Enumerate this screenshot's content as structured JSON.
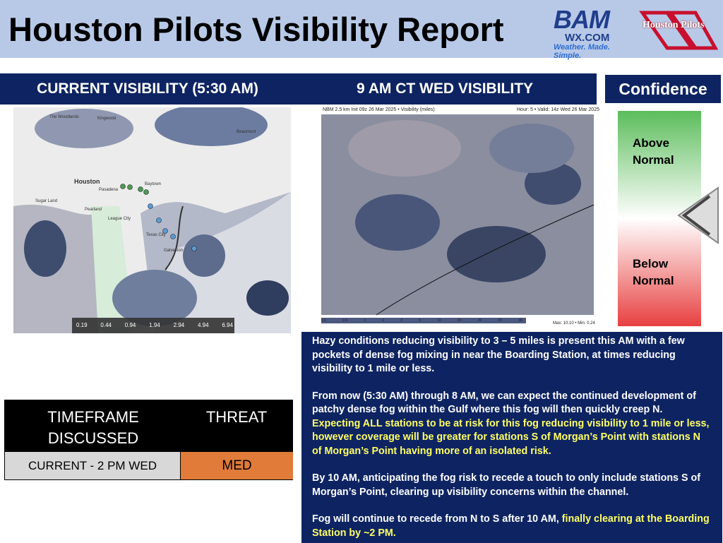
{
  "header": {
    "title": "Houston Pilots Visibility Report",
    "logos": {
      "bam": "BAM",
      "bam_site": "WX.COM",
      "bam_tagline": "Weather. Made. Simple.",
      "pilots": "Houston Pilots"
    }
  },
  "panels": {
    "current": {
      "title": "CURRENT VISIBILITY (5:30 AM)",
      "map_labels": [
        "The Woodlands",
        "Kingwood",
        "Houston",
        "Pasadena",
        "Baytown",
        "Sugar Land",
        "Pearland",
        "League City",
        "Texas City",
        "Galveston",
        "Beaumont"
      ],
      "legend": [
        "0.19",
        "0.44",
        "0.94",
        "1.94",
        "2.94",
        "4.94",
        "6.94"
      ]
    },
    "forecast": {
      "title": "9 AM CT WED VISIBILITY",
      "model": "NBM 2.5 km Init 09z 26 Mar 2025 • Visibility (miles)",
      "valid": "Hour: 5 • Valid: 14z Wed 26 Mar 2025",
      "legend": [
        "0.1",
        "0.5",
        "1",
        "2",
        "3",
        "5",
        "10",
        "15",
        "20",
        "25",
        "30"
      ],
      "maxmin": "Max: 10.10 • Min: 0.24"
    }
  },
  "confidence": {
    "title": "Confidence",
    "above": "Above Normal",
    "below": "Below Normal"
  },
  "table": {
    "headers": [
      "TIMEFRAME DISCUSSED",
      "THREAT"
    ],
    "rows": [
      [
        "CURRENT -  2 PM WED",
        "MED"
      ]
    ]
  },
  "discussion": {
    "paragraphs": [
      {
        "segments": [
          {
            "text": "Hazy conditions reducing visibility to 3 – 5 miles is present this AM with a few pockets of dense fog mixing in near the Boarding Station, at times reducing visibility to 1 mile or less.",
            "color": "#ffffff"
          }
        ]
      },
      {
        "segments": [
          {
            "text": "From now (5:30 AM) through 8 AM, we can expect the continued development of patchy dense fog within the Gulf where this fog will then quickly creep N. ",
            "color": "#ffffff"
          },
          {
            "text": "Expecting ALL stations to be at risk for this fog reducing visibility to 1 mile or less, however coverage will be greater for stations S of Morgan’s Point with stations N of Morgan’s Point having more of an isolated risk.",
            "color": "#ffff66"
          }
        ]
      },
      {
        "segments": [
          {
            "text": "By 10 AM, anticipating the fog risk to recede a touch to only include stations S of Morgan’s Point, clearing up visibility concerns within the channel.",
            "color": "#ffffff"
          }
        ]
      },
      {
        "segments": [
          {
            "text": "Fog will continue to recede from N to S after 10 AM, ",
            "color": "#ffffff"
          },
          {
            "text": "finally clearing at the Boarding Station by ~2 PM.",
            "color": "#ffff66"
          }
        ]
      }
    ]
  }
}
